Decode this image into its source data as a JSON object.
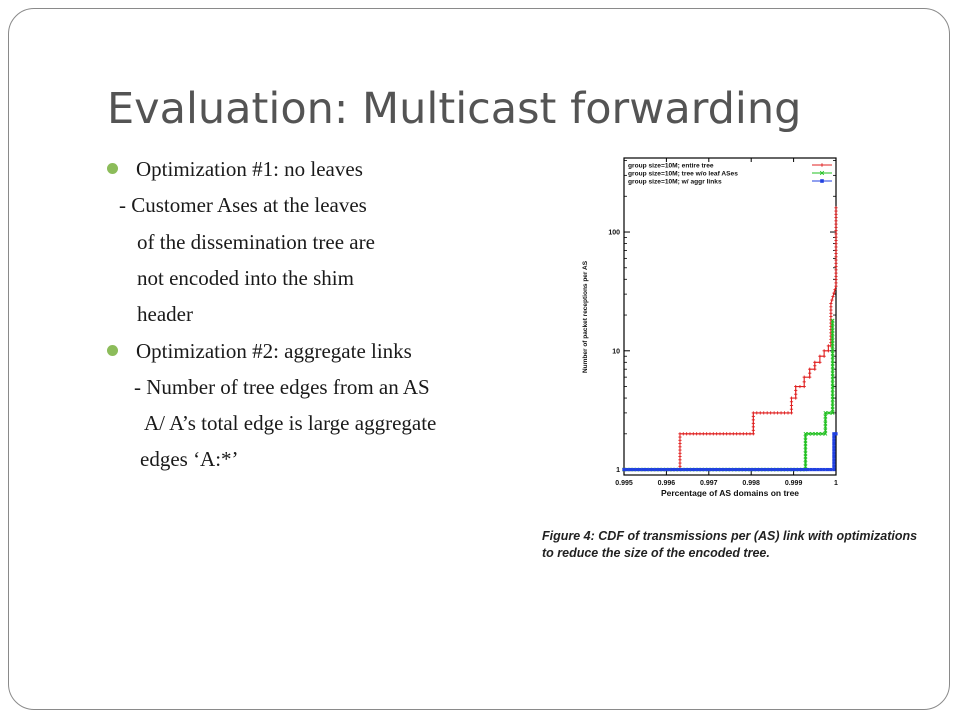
{
  "slide": {
    "title": "Evaluation: Multicast forwarding",
    "bullets": [
      {
        "lines": [
          "Optimization #1: no leaves",
          "- Customer Ases at the leaves",
          "of the dissemination tree are",
          "not encoded into the shim",
          "header"
        ]
      },
      {
        "lines": [
          "Optimization #2: aggregate links",
          "- Number of tree edges from an AS",
          "A/ A’s total edge is large aggregate",
          "edges ‘A:*’"
        ]
      }
    ],
    "caption": {
      "label": "Figure 4:",
      "line1": "CDF of transmissions per (AS) link with optimizations",
      "line2": "to reduce the size of the encoded tree."
    },
    "colors": {
      "title": "#545454",
      "bullet": "#8cbc5a",
      "frame": "#8a8a8a"
    }
  },
  "chart_data": {
    "type": "line",
    "xlabel": "Percentage of AS domains on tree",
    "ylabel": "Number of packet receptions per AS",
    "x_ticks": [
      "0.995",
      "0.996",
      "0.997",
      "0.998",
      "0.999",
      "1"
    ],
    "y_ticks": [
      "1",
      "10",
      "100"
    ],
    "xlim": [
      0.995,
      1.0
    ],
    "ylim": [
      0.9,
      420
    ],
    "y_scale": "log",
    "legend_position": "top-right",
    "series": [
      {
        "name": "group size=10M; entire tree",
        "color": "#e02020",
        "marker": "plus",
        "x": [
          0.995,
          0.99632,
          0.99632,
          0.99805,
          0.99805,
          0.99895,
          0.99895,
          0.99905,
          0.99905,
          0.99925,
          0.99925,
          0.99938,
          0.99938,
          0.9995,
          0.9995,
          0.99962,
          0.99962,
          0.99972,
          0.99972,
          0.99982,
          0.99982,
          0.99988,
          0.99988,
          1.0,
          1.0
        ],
        "y": [
          1,
          1,
          2,
          2,
          3,
          3,
          4,
          4,
          5,
          5,
          6,
          6,
          7,
          7,
          8,
          8,
          9,
          9,
          10,
          10,
          11,
          11,
          25,
          35,
          160
        ]
      },
      {
        "name": "group size=10M; tree w/o leaf ASes",
        "color": "#20c020",
        "marker": "x",
        "x": [
          0.995,
          0.99928,
          0.99928,
          0.99975,
          0.99975,
          0.99992,
          0.99992
        ],
        "y": [
          1,
          1,
          2,
          2,
          3,
          3,
          18
        ]
      },
      {
        "name": "group size=10M; w/ aggr links",
        "color": "#2040e0",
        "marker": "square",
        "x": [
          0.995,
          0.99995,
          0.99995,
          1.0
        ],
        "y": [
          1,
          1,
          2,
          2
        ]
      }
    ]
  }
}
